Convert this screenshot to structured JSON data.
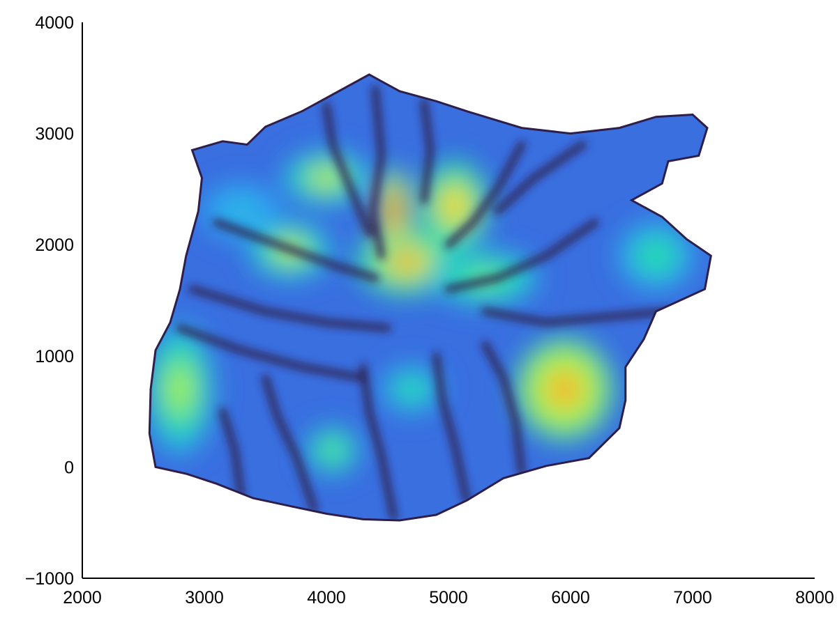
{
  "chart_data": {
    "type": "heatmap",
    "title": "",
    "xlabel": "",
    "ylabel": "",
    "xlim": [
      2000,
      8000
    ],
    "ylim": [
      -1000,
      4000
    ],
    "x_ticks": [
      2000,
      3000,
      4000,
      5000,
      6000,
      7000,
      8000
    ],
    "y_ticks": [
      -1000,
      0,
      1000,
      2000,
      3000,
      4000
    ],
    "x_tick_labels": [
      "2000",
      "3000",
      "4000",
      "5000",
      "6000",
      "7000",
      "8000"
    ],
    "y_tick_labels": [
      "−1000",
      "0",
      "1000",
      "2000",
      "3000",
      "4000"
    ],
    "grid": false,
    "colorbar": false,
    "colormap": [
      "#2d1e4a",
      "#3f3f9a",
      "#3a6fe0",
      "#2fa8f0",
      "#28d8b0",
      "#a6f04a",
      "#f6d23a",
      "#f58a24",
      "#c42a0c"
    ],
    "island_outline": [
      [
        2600,
        0
      ],
      [
        2550,
        300
      ],
      [
        2560,
        700
      ],
      [
        2600,
        1050
      ],
      [
        2720,
        1300
      ],
      [
        2800,
        1600
      ],
      [
        2850,
        1900
      ],
      [
        2950,
        2300
      ],
      [
        2980,
        2600
      ],
      [
        2900,
        2850
      ],
      [
        3150,
        2930
      ],
      [
        3350,
        2900
      ],
      [
        3500,
        3060
      ],
      [
        3800,
        3200
      ],
      [
        4100,
        3380
      ],
      [
        4350,
        3530
      ],
      [
        4600,
        3380
      ],
      [
        4900,
        3290
      ],
      [
        5150,
        3200
      ],
      [
        5600,
        3050
      ],
      [
        6000,
        3000
      ],
      [
        6400,
        3050
      ],
      [
        6700,
        3150
      ],
      [
        7000,
        3170
      ],
      [
        7120,
        3050
      ],
      [
        7050,
        2800
      ],
      [
        6800,
        2750
      ],
      [
        6750,
        2550
      ],
      [
        6500,
        2400
      ],
      [
        6750,
        2250
      ],
      [
        6950,
        2050
      ],
      [
        7150,
        1900
      ],
      [
        7100,
        1600
      ],
      [
        6900,
        1500
      ],
      [
        6700,
        1400
      ],
      [
        6600,
        1150
      ],
      [
        6450,
        900
      ],
      [
        6450,
        600
      ],
      [
        6400,
        350
      ],
      [
        6150,
        80
      ],
      [
        5800,
        10
      ],
      [
        5450,
        -100
      ],
      [
        5150,
        -300
      ],
      [
        4900,
        -430
      ],
      [
        4600,
        -480
      ],
      [
        4300,
        -470
      ],
      [
        4000,
        -420
      ],
      [
        3700,
        -350
      ],
      [
        3400,
        -280
      ],
      [
        3100,
        -150
      ],
      [
        2850,
        -60
      ]
    ],
    "hotspots": [
      {
        "x": 4650,
        "y": 1850,
        "level": 0.85,
        "rx": 260,
        "ry": 200
      },
      {
        "x": 4550,
        "y": 2300,
        "level": 0.95,
        "rx": 90,
        "ry": 260
      },
      {
        "x": 5050,
        "y": 2350,
        "level": 0.8,
        "rx": 180,
        "ry": 260
      },
      {
        "x": 4000,
        "y": 2600,
        "level": 0.7,
        "rx": 230,
        "ry": 160
      },
      {
        "x": 3700,
        "y": 1950,
        "level": 0.7,
        "rx": 220,
        "ry": 170
      },
      {
        "x": 5300,
        "y": 1700,
        "level": 0.6,
        "rx": 280,
        "ry": 160
      },
      {
        "x": 5950,
        "y": 700,
        "level": 0.9,
        "rx": 260,
        "ry": 300
      },
      {
        "x": 2800,
        "y": 700,
        "level": 0.65,
        "rx": 180,
        "ry": 380
      },
      {
        "x": 4050,
        "y": 150,
        "level": 0.6,
        "rx": 140,
        "ry": 140
      },
      {
        "x": 4700,
        "y": 700,
        "level": 0.55,
        "rx": 160,
        "ry": 140
      },
      {
        "x": 6700,
        "y": 1900,
        "level": 0.5,
        "rx": 200,
        "ry": 200
      },
      {
        "x": 3300,
        "y": 2300,
        "level": 0.45,
        "rx": 200,
        "ry": 160
      }
    ],
    "valleys": [
      [
        [
          4400,
          3400
        ],
        [
          4450,
          2800
        ],
        [
          4380,
          2300
        ],
        [
          4450,
          1900
        ]
      ],
      [
        [
          3100,
          2200
        ],
        [
          3600,
          2000
        ],
        [
          4100,
          1800
        ],
        [
          4400,
          1700
        ]
      ],
      [
        [
          2900,
          1600
        ],
        [
          3500,
          1400
        ],
        [
          4000,
          1300
        ],
        [
          4500,
          1250
        ]
      ],
      [
        [
          2800,
          1250
        ],
        [
          3300,
          1050
        ],
        [
          3800,
          900
        ],
        [
          4300,
          800
        ]
      ],
      [
        [
          5600,
          2900
        ],
        [
          5400,
          2500
        ],
        [
          5200,
          2200
        ],
        [
          5000,
          2000
        ]
      ],
      [
        [
          6200,
          2200
        ],
        [
          5800,
          1900
        ],
        [
          5400,
          1700
        ],
        [
          5000,
          1600
        ]
      ],
      [
        [
          6800,
          1400
        ],
        [
          6300,
          1350
        ],
        [
          5800,
          1300
        ],
        [
          5300,
          1400
        ]
      ],
      [
        [
          5150,
          -300
        ],
        [
          5050,
          200
        ],
        [
          4950,
          600
        ],
        [
          4900,
          1000
        ]
      ],
      [
        [
          4550,
          -450
        ],
        [
          4450,
          100
        ],
        [
          4350,
          500
        ],
        [
          4300,
          900
        ]
      ],
      [
        [
          3900,
          -380
        ],
        [
          3750,
          100
        ],
        [
          3600,
          450
        ],
        [
          3500,
          800
        ]
      ],
      [
        [
          5600,
          -50
        ],
        [
          5550,
          400
        ],
        [
          5450,
          800
        ],
        [
          5300,
          1100
        ]
      ],
      [
        [
          3300,
          -250
        ],
        [
          3250,
          150
        ],
        [
          3150,
          500
        ]
      ],
      [
        [
          4000,
          3250
        ],
        [
          4050,
          2900
        ],
        [
          4200,
          2500
        ],
        [
          4350,
          2100
        ]
      ],
      [
        [
          4800,
          3280
        ],
        [
          4850,
          2850
        ],
        [
          4800,
          2400
        ]
      ],
      [
        [
          6100,
          2900
        ],
        [
          5700,
          2600
        ],
        [
          5400,
          2300
        ]
      ]
    ]
  }
}
